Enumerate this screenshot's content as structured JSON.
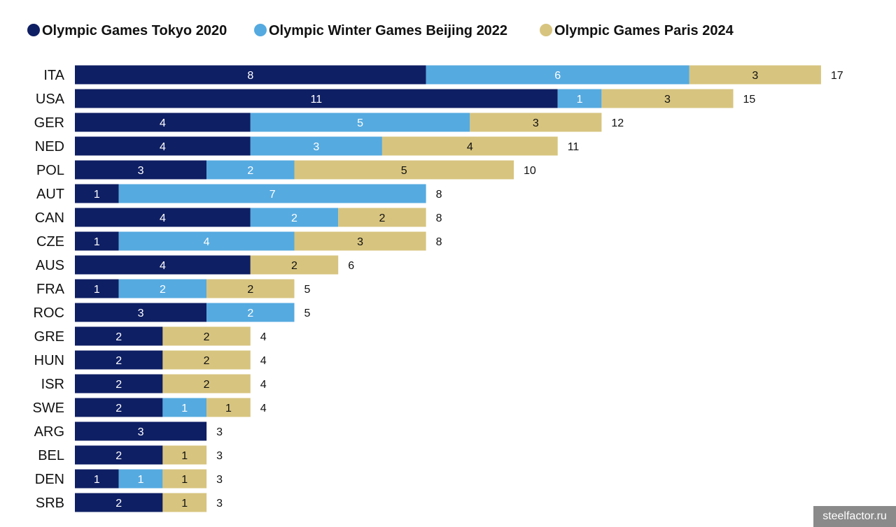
{
  "chart_data": {
    "type": "bar",
    "orientation": "horizontal",
    "stacked": true,
    "legend_position": "top-left",
    "grid": false,
    "xlim": [
      0,
      17
    ],
    "categories": [
      "ITA",
      "USA",
      "GER",
      "NED",
      "POL",
      "AUT",
      "CAN",
      "CZE",
      "AUS",
      "FRA",
      "ROC",
      "GRE",
      "HUN",
      "ISR",
      "SWE",
      "ARG",
      "BEL",
      "DEN",
      "SRB"
    ],
    "series": [
      {
        "name": "Olympic Games Tokyo 2020",
        "color": "#0f1f64",
        "label_color": "#ffffff",
        "values": [
          8,
          11,
          4,
          4,
          3,
          1,
          4,
          1,
          4,
          1,
          3,
          2,
          2,
          2,
          2,
          3,
          2,
          1,
          2
        ]
      },
      {
        "name": "Olympic Winter Games Beijing 2022",
        "color": "#55aae0",
        "label_color": "#ffffff",
        "values": [
          6,
          1,
          5,
          3,
          2,
          7,
          2,
          4,
          0,
          2,
          2,
          0,
          0,
          0,
          1,
          0,
          0,
          1,
          0
        ]
      },
      {
        "name": "Olympic Games Paris 2024",
        "color": "#d7c47f",
        "label_color": "#111111",
        "values": [
          3,
          3,
          3,
          4,
          5,
          0,
          2,
          3,
          2,
          2,
          0,
          2,
          2,
          2,
          1,
          0,
          1,
          1,
          1
        ]
      }
    ],
    "totals": [
      17,
      15,
      12,
      11,
      10,
      8,
      8,
      8,
      6,
      5,
      5,
      4,
      4,
      4,
      4,
      3,
      3,
      3,
      3
    ]
  },
  "watermark": "steelfactor.ru"
}
